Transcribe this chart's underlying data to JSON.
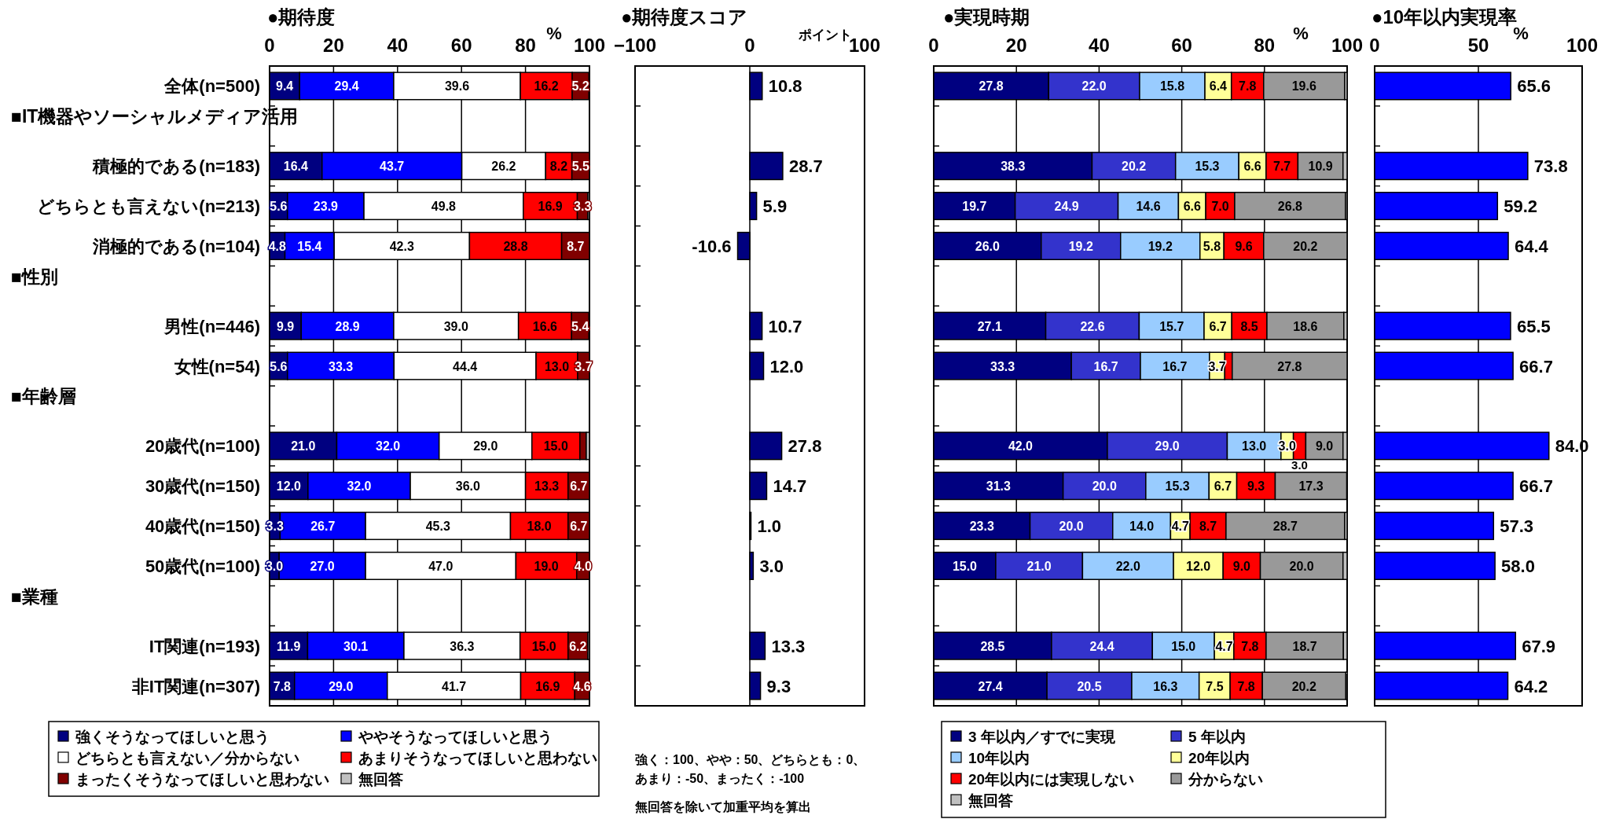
{
  "chart_data": [
    {
      "type": "bar",
      "orientation": "horizontal",
      "stacked": true,
      "title": "●期待度",
      "xlabel": "%",
      "categories": [
        "全体(n=500)",
        null,
        "積極的である(n=183)",
        "どちらとも言えない(n=213)",
        "消極的である(n=104)",
        null,
        "男性(n=446)",
        "女性(n=54)",
        null,
        "20歳代(n=100)",
        "30歳代(n=150)",
        "40歳代(n=150)",
        "50歳代(n=100)",
        null,
        "IT関連(n=193)",
        "非IT関連(n=307)"
      ],
      "annotations": [
        "■IT機器やソーシャルメディア活用",
        "■性別",
        "■年齢層",
        "■業種"
      ],
      "xlim": [
        0,
        100
      ],
      "xticks": [
        0,
        20,
        40,
        60,
        80,
        100
      ],
      "grid": "x",
      "legend": "bottom",
      "series": [
        {
          "name": "強くそうなってほしいと思う",
          "color": "#000080",
          "values": [
            9.4,
            null,
            16.4,
            5.6,
            4.8,
            null,
            9.9,
            5.6,
            null,
            21.0,
            12.0,
            3.3,
            3.0,
            null,
            11.9,
            7.8
          ],
          "value_labels": [
            "9.4",
            null,
            "16.4",
            "5.6",
            "4.8",
            null,
            "9.9",
            "5.6",
            null,
            "21.0",
            "12.0",
            "3.3",
            "3.0",
            null,
            "11.9",
            "7.8"
          ]
        },
        {
          "name": "ややそうなってほしいと思う",
          "color": "#0000ff",
          "values": [
            29.4,
            null,
            43.7,
            23.9,
            15.4,
            null,
            28.9,
            33.3,
            null,
            32.0,
            32.0,
            26.7,
            27.0,
            null,
            30.1,
            29.0
          ],
          "value_labels": [
            "29.4",
            null,
            "43.7",
            "23.9",
            "15.4",
            null,
            "28.9",
            "33.3",
            null,
            "32.0",
            "32.0",
            "26.7",
            "27.0",
            null,
            "30.1",
            "29.0"
          ]
        },
        {
          "name": "どちらとも言えない／分からない",
          "color": "#ffffff",
          "values": [
            39.6,
            null,
            26.2,
            49.8,
            42.3,
            null,
            39.0,
            44.4,
            null,
            29.0,
            36.0,
            45.3,
            47.0,
            null,
            36.3,
            41.7
          ],
          "value_labels": [
            "39.6",
            null,
            "26.2",
            "49.8",
            "42.3",
            null,
            "39.0",
            "44.4",
            null,
            "29.0",
            "36.0",
            "45.3",
            "47.0",
            null,
            "36.3",
            "41.7"
          ]
        },
        {
          "name": "あまりそうなってほしいと思わない",
          "color": "#ff0000",
          "values": [
            16.2,
            null,
            8.2,
            16.9,
            28.8,
            null,
            16.6,
            13.0,
            null,
            15.0,
            13.3,
            18.0,
            19.0,
            null,
            15.0,
            16.9
          ],
          "value_labels": [
            "16.2",
            null,
            "8.2",
            "16.9",
            "28.8",
            null,
            "16.6",
            "13.0",
            null,
            "15.0",
            "13.3",
            "18.0",
            "19.0",
            null,
            "15.0",
            "16.9"
          ]
        },
        {
          "name": "まったくそうなってほしいと思わない",
          "color": "#800000",
          "values": [
            5.2,
            null,
            5.5,
            3.3,
            8.7,
            null,
            5.4,
            3.7,
            null,
            2.0,
            6.7,
            6.7,
            4.0,
            null,
            6.2,
            4.6
          ],
          "value_labels": [
            "5.2",
            null,
            "5.5",
            "3.3",
            "8.7",
            null,
            "5.4",
            "3.7",
            null,
            null,
            "6.7",
            "6.7",
            "4.0",
            null,
            "6.2",
            "4.6"
          ]
        },
        {
          "name": "無回答",
          "color": "#c0c0c0",
          "values": [
            null,
            null,
            0,
            0.5,
            0,
            null,
            null,
            0,
            null,
            1.0,
            0,
            0,
            0,
            null,
            0.5,
            0
          ],
          "value_labels": [
            null,
            null,
            null,
            null,
            null,
            null,
            null,
            null,
            null,
            null,
            null,
            null,
            null,
            null,
            null,
            null
          ]
        }
      ]
    },
    {
      "type": "bar",
      "orientation": "horizontal",
      "title": "●期待度スコア",
      "xlabel": "ポイント",
      "tick_labels": "x",
      "categories": [
        null,
        null,
        null,
        null,
        null,
        null,
        null,
        null,
        null,
        null,
        null,
        null,
        null,
        null,
        null,
        null
      ],
      "xlim": [
        -100,
        100
      ],
      "xticks": [
        -100,
        0,
        100
      ],
      "grid": "x",
      "series": [
        {
          "color": "#000080",
          "values": [
            10.8,
            null,
            28.7,
            5.9,
            -10.6,
            null,
            10.7,
            12.0,
            null,
            27.8,
            14.7,
            1.0,
            3.0,
            null,
            13.3,
            9.3
          ],
          "value_labels": [
            "10.8",
            null,
            "28.7",
            "5.9",
            "-10.6",
            null,
            "10.7",
            "12.0",
            null,
            "27.8",
            "14.7",
            "1.0",
            "3.0",
            null,
            "13.3",
            "9.3"
          ]
        }
      ],
      "annotations": [
        "強く：100、やや：50、どちらとも：0、あまり：-50、まったく：-100",
        "無回答を除いて加重平均を算出"
      ]
    },
    {
      "type": "bar",
      "orientation": "horizontal",
      "stacked": true,
      "title": "●実現時期",
      "xlabel": "%",
      "tick_labels": "x",
      "categories": [
        null,
        null,
        null,
        null,
        null,
        null,
        null,
        null,
        null,
        null,
        null,
        null,
        null,
        null,
        null,
        null
      ],
      "xlim": [
        0,
        100
      ],
      "xticks": [
        0,
        20,
        40,
        60,
        80,
        100
      ],
      "grid": "x",
      "legend": "bottom",
      "series": [
        {
          "name": "3 年以内／すでに実現",
          "color": "#000080",
          "values": [
            27.8,
            null,
            38.3,
            19.7,
            26.0,
            null,
            27.1,
            33.3,
            null,
            42.0,
            31.3,
            23.3,
            15.0,
            null,
            28.5,
            27.4
          ],
          "value_labels": [
            "27.8",
            null,
            "38.3",
            "19.7",
            "26.0",
            null,
            "27.1",
            "33.3",
            null,
            "42.0",
            "31.3",
            "23.3",
            "15.0",
            null,
            "28.5",
            "27.4"
          ]
        },
        {
          "name": "5 年以内",
          "color": "#3333cc",
          "values": [
            22.0,
            null,
            20.2,
            24.9,
            19.2,
            null,
            22.6,
            16.7,
            null,
            29.0,
            20.0,
            20.0,
            21.0,
            null,
            24.4,
            20.5
          ],
          "value_labels": [
            "22.0",
            null,
            "20.2",
            "24.9",
            "19.2",
            null,
            "22.6",
            "16.7",
            null,
            "29.0",
            "20.0",
            "20.0",
            "21.0",
            null,
            "24.4",
            "20.5"
          ]
        },
        {
          "name": "10年以内",
          "color": "#99ccff",
          "values": [
            15.8,
            null,
            15.3,
            14.6,
            19.2,
            null,
            15.7,
            16.7,
            null,
            13.0,
            15.3,
            14.0,
            22.0,
            null,
            15.0,
            16.3
          ],
          "value_labels": [
            "15.8",
            null,
            "15.3",
            "14.6",
            "19.2",
            null,
            "15.7",
            "16.7",
            null,
            "13.0",
            "15.3",
            "14.0",
            "22.0",
            null,
            "15.0",
            "16.3"
          ]
        },
        {
          "name": "20年以内",
          "color": "#ffff99",
          "values": [
            6.4,
            null,
            6.6,
            6.6,
            5.8,
            null,
            6.7,
            3.7,
            null,
            3.0,
            6.7,
            4.7,
            12.0,
            null,
            4.7,
            7.5
          ],
          "value_labels": [
            "6.4",
            null,
            "6.6",
            "6.6",
            "5.8",
            null,
            "6.7",
            "3.7",
            null,
            "3.0",
            "6.7",
            "4.7",
            "12.0",
            null,
            "4.7",
            "7.5"
          ]
        },
        {
          "name": "20年以内には実現しない",
          "color": "#ff0000",
          "values": [
            7.8,
            null,
            7.7,
            7.0,
            9.6,
            null,
            8.5,
            1.8,
            null,
            3.0,
            9.3,
            8.7,
            9.0,
            null,
            7.8,
            7.8
          ],
          "value_labels": [
            "7.8",
            null,
            "7.7",
            "7.0",
            "9.6",
            null,
            "8.5",
            null,
            null,
            "3.0",
            "9.3",
            "8.7",
            "9.0",
            null,
            "7.8",
            "7.8"
          ]
        },
        {
          "name": "分からない",
          "color": "#999999",
          "values": [
            19.6,
            null,
            10.9,
            26.8,
            20.2,
            null,
            18.6,
            27.8,
            null,
            9.0,
            17.3,
            28.7,
            20.0,
            null,
            18.7,
            20.2
          ],
          "value_labels": [
            "19.6",
            null,
            "10.9",
            "26.8",
            "20.2",
            null,
            "18.6",
            "27.8",
            null,
            "9.0",
            "17.3",
            "28.7",
            "20.0",
            null,
            "18.7",
            "20.2"
          ]
        },
        {
          "name": "無回答",
          "color": "#c0c0c0",
          "values": [
            0.6,
            null,
            1.0,
            0.4,
            0,
            null,
            0.8,
            0,
            null,
            1.0,
            0,
            0.6,
            1.0,
            null,
            0.9,
            0.3
          ],
          "value_labels": [
            null,
            null,
            null,
            null,
            null,
            null,
            null,
            null,
            null,
            null,
            null,
            null,
            null,
            null,
            null,
            null
          ]
        }
      ]
    },
    {
      "type": "bar",
      "orientation": "horizontal",
      "title": "●10年以内実現率",
      "xlabel": "%",
      "tick_labels": "x",
      "categories": [
        null,
        null,
        null,
        null,
        null,
        null,
        null,
        null,
        null,
        null,
        null,
        null,
        null,
        null,
        null,
        null
      ],
      "xlim": [
        0,
        100
      ],
      "xticks": [
        0,
        50,
        100
      ],
      "grid": "x",
      "series": [
        {
          "color": "#0000ff",
          "values": [
            65.6,
            null,
            73.8,
            59.2,
            64.4,
            null,
            65.5,
            66.7,
            null,
            84.0,
            66.7,
            57.3,
            58.0,
            null,
            67.9,
            64.2
          ],
          "value_labels": [
            "65.6",
            null,
            "73.8",
            "59.2",
            "64.4",
            null,
            "65.5",
            "66.7",
            null,
            "84.0",
            "66.7",
            "57.3",
            "58.0",
            null,
            "67.9",
            "64.2"
          ]
        }
      ]
    }
  ]
}
